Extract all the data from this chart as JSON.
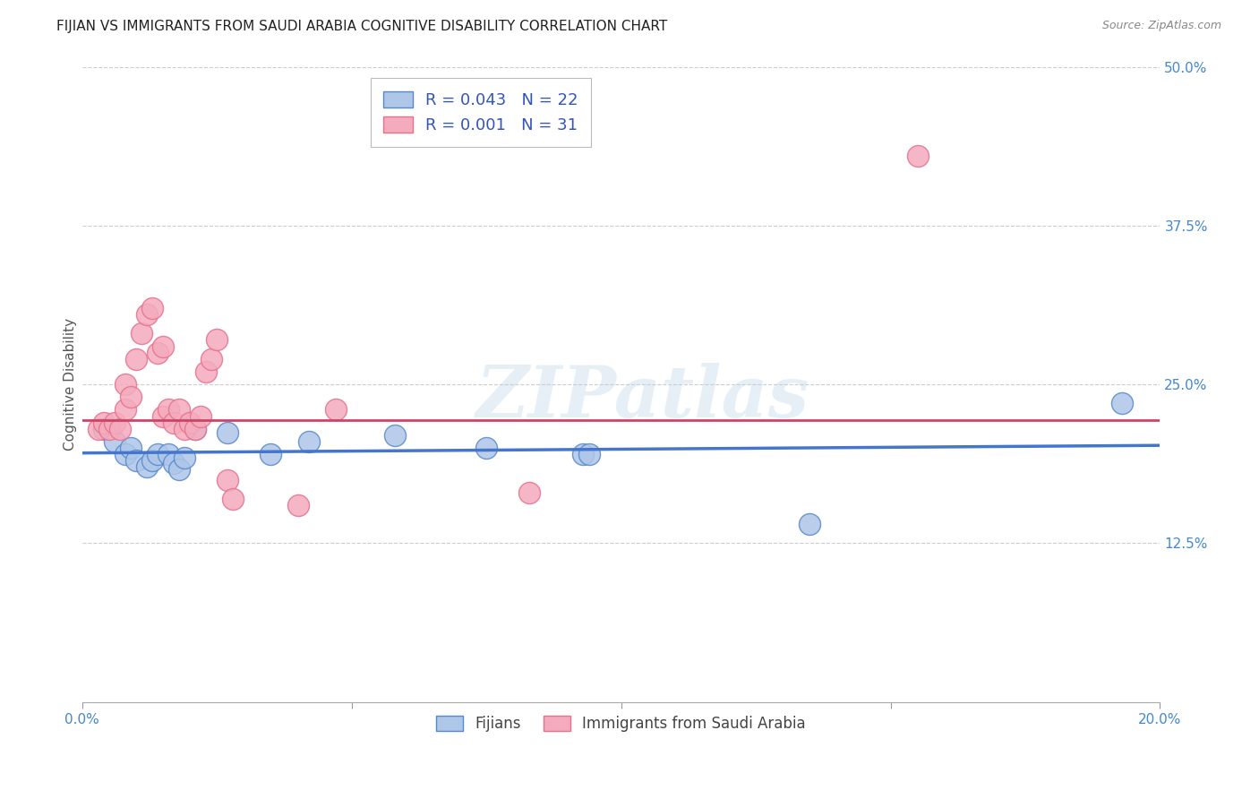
{
  "title": "FIJIAN VS IMMIGRANTS FROM SAUDI ARABIA COGNITIVE DISABILITY CORRELATION CHART",
  "source": "Source: ZipAtlas.com",
  "ylabel": "Cognitive Disability",
  "xlim": [
    0.0,
    0.2
  ],
  "ylim": [
    0.0,
    0.5
  ],
  "x_ticks": [
    0.0,
    0.05,
    0.1,
    0.15,
    0.2
  ],
  "x_tick_labels": [
    "0.0%",
    "",
    "",
    "",
    "20.0%"
  ],
  "y_ticks": [
    0.0,
    0.125,
    0.25,
    0.375,
    0.5
  ],
  "y_tick_labels": [
    "",
    "12.5%",
    "25.0%",
    "37.5%",
    "50.0%"
  ],
  "blue_color": "#AEC6E8",
  "pink_color": "#F4ABBE",
  "blue_edge_color": "#5588CC",
  "pink_edge_color": "#E8708A",
  "blue_line_color": "#4477CC",
  "pink_line_color": "#CC4466",
  "watermark": "ZIPatlas",
  "legend_R_blue": "0.043",
  "legend_N_blue": "22",
  "legend_R_pink": "0.001",
  "legend_N_pink": "31",
  "legend_label_blue": "Fijians",
  "legend_label_pink": "Immigrants from Saudi Arabia",
  "blue_dots_x": [
    0.004,
    0.006,
    0.008,
    0.009,
    0.01,
    0.012,
    0.013,
    0.014,
    0.016,
    0.017,
    0.018,
    0.019,
    0.021,
    0.027,
    0.035,
    0.042,
    0.058,
    0.075,
    0.093,
    0.094,
    0.135,
    0.193
  ],
  "blue_dots_y": [
    0.215,
    0.205,
    0.195,
    0.2,
    0.19,
    0.185,
    0.19,
    0.195,
    0.195,
    0.188,
    0.183,
    0.192,
    0.215,
    0.212,
    0.195,
    0.205,
    0.21,
    0.2,
    0.195,
    0.195,
    0.14,
    0.235
  ],
  "pink_dots_x": [
    0.003,
    0.004,
    0.005,
    0.006,
    0.007,
    0.008,
    0.008,
    0.009,
    0.01,
    0.011,
    0.012,
    0.013,
    0.014,
    0.015,
    0.015,
    0.016,
    0.017,
    0.018,
    0.019,
    0.02,
    0.021,
    0.022,
    0.023,
    0.024,
    0.025,
    0.027,
    0.028,
    0.04,
    0.047,
    0.083,
    0.155
  ],
  "pink_dots_y": [
    0.215,
    0.22,
    0.215,
    0.22,
    0.215,
    0.23,
    0.25,
    0.24,
    0.27,
    0.29,
    0.305,
    0.31,
    0.275,
    0.28,
    0.225,
    0.23,
    0.22,
    0.23,
    0.215,
    0.22,
    0.215,
    0.225,
    0.26,
    0.27,
    0.285,
    0.175,
    0.16,
    0.155,
    0.23,
    0.165,
    0.43
  ],
  "blue_trend_x": [
    0.0,
    0.2
  ],
  "blue_trend_y": [
    0.196,
    0.202
  ],
  "pink_trend_x": [
    0.0,
    0.2
  ],
  "pink_trend_y": [
    0.222,
    0.222
  ],
  "grid_color": "#CCCCCC",
  "bg_color": "#FFFFFF",
  "title_fontsize": 11,
  "axis_label_fontsize": 11,
  "tick_fontsize": 11,
  "legend_fontsize": 13,
  "legend2_fontsize": 12
}
